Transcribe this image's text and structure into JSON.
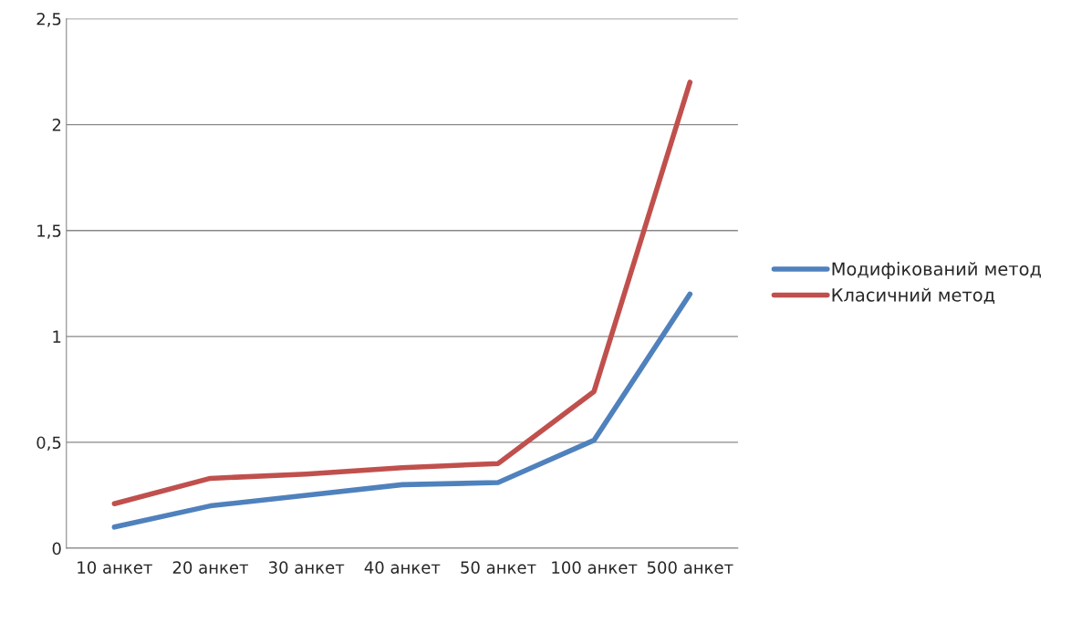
{
  "chart_data": {
    "type": "line",
    "categories": [
      "10 анкет",
      "20 анкет",
      "30 анкет",
      "40 анкет",
      "50 анкет",
      "100 анкет",
      "500 анкет"
    ],
    "series": [
      {
        "name": "Модифікований метод",
        "color": "#4f81bd",
        "values": [
          0.1,
          0.2,
          0.25,
          0.3,
          0.31,
          0.51,
          1.2
        ]
      },
      {
        "name": "Класичний метод",
        "color": "#c0504d",
        "values": [
          0.21,
          0.33,
          0.35,
          0.38,
          0.4,
          0.74,
          2.2
        ]
      }
    ],
    "ylim": [
      0,
      2.5
    ],
    "yticks": [
      0,
      {
        "value": 0.5,
        "label": "0,5"
      },
      1,
      {
        "value": 1.5,
        "label": "1,5"
      },
      2,
      {
        "value": 2.5,
        "label": "2,5"
      }
    ],
    "grid": "y",
    "legend": "right",
    "marker": "none",
    "line_style": "solid"
  }
}
